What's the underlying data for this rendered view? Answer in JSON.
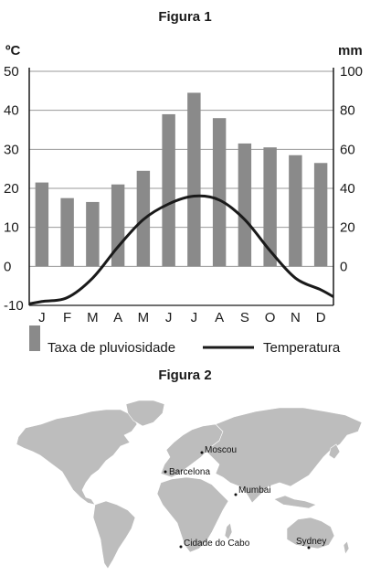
{
  "figure1": {
    "title": "Figura 1"
  },
  "figure2": {
    "title": "Figura 2",
    "cities": [
      {
        "name": "Moscou"
      },
      {
        "name": "Barcelona"
      },
      {
        "name": "Mumbai"
      },
      {
        "name": "Cidade do Cabo"
      },
      {
        "name": "Sydney"
      }
    ],
    "land_color": "#bdbdbd"
  },
  "chart_data": {
    "type": "bar",
    "categories": [
      "J",
      "F",
      "M",
      "A",
      "M",
      "J",
      "J",
      "A",
      "S",
      "O",
      "N",
      "D"
    ],
    "series": [
      {
        "name": "Taxa de pluviosidade",
        "type": "bar",
        "axis": "right",
        "unit": "mm",
        "values": [
          43,
          35,
          33,
          42,
          49,
          78,
          89,
          76,
          63,
          61,
          57,
          53
        ],
        "color": "#8a8a8a"
      },
      {
        "name": "Temperatura",
        "type": "line",
        "axis": "left",
        "unit": "°C",
        "values": [
          -9,
          -8,
          -3,
          5,
          12,
          16,
          18,
          17,
          12,
          4,
          -3,
          -6
        ],
        "color": "#1a1a1a"
      }
    ],
    "left_axis": {
      "label": "ºC",
      "min": -10,
      "max": 50,
      "ticks": [
        50,
        40,
        30,
        20,
        10,
        0,
        -10
      ]
    },
    "right_axis": {
      "label": "mm",
      "min": -20,
      "max": 100,
      "ticks": [
        100,
        80,
        60,
        40,
        20,
        0
      ]
    },
    "legend": {
      "placement": "bottom"
    }
  }
}
